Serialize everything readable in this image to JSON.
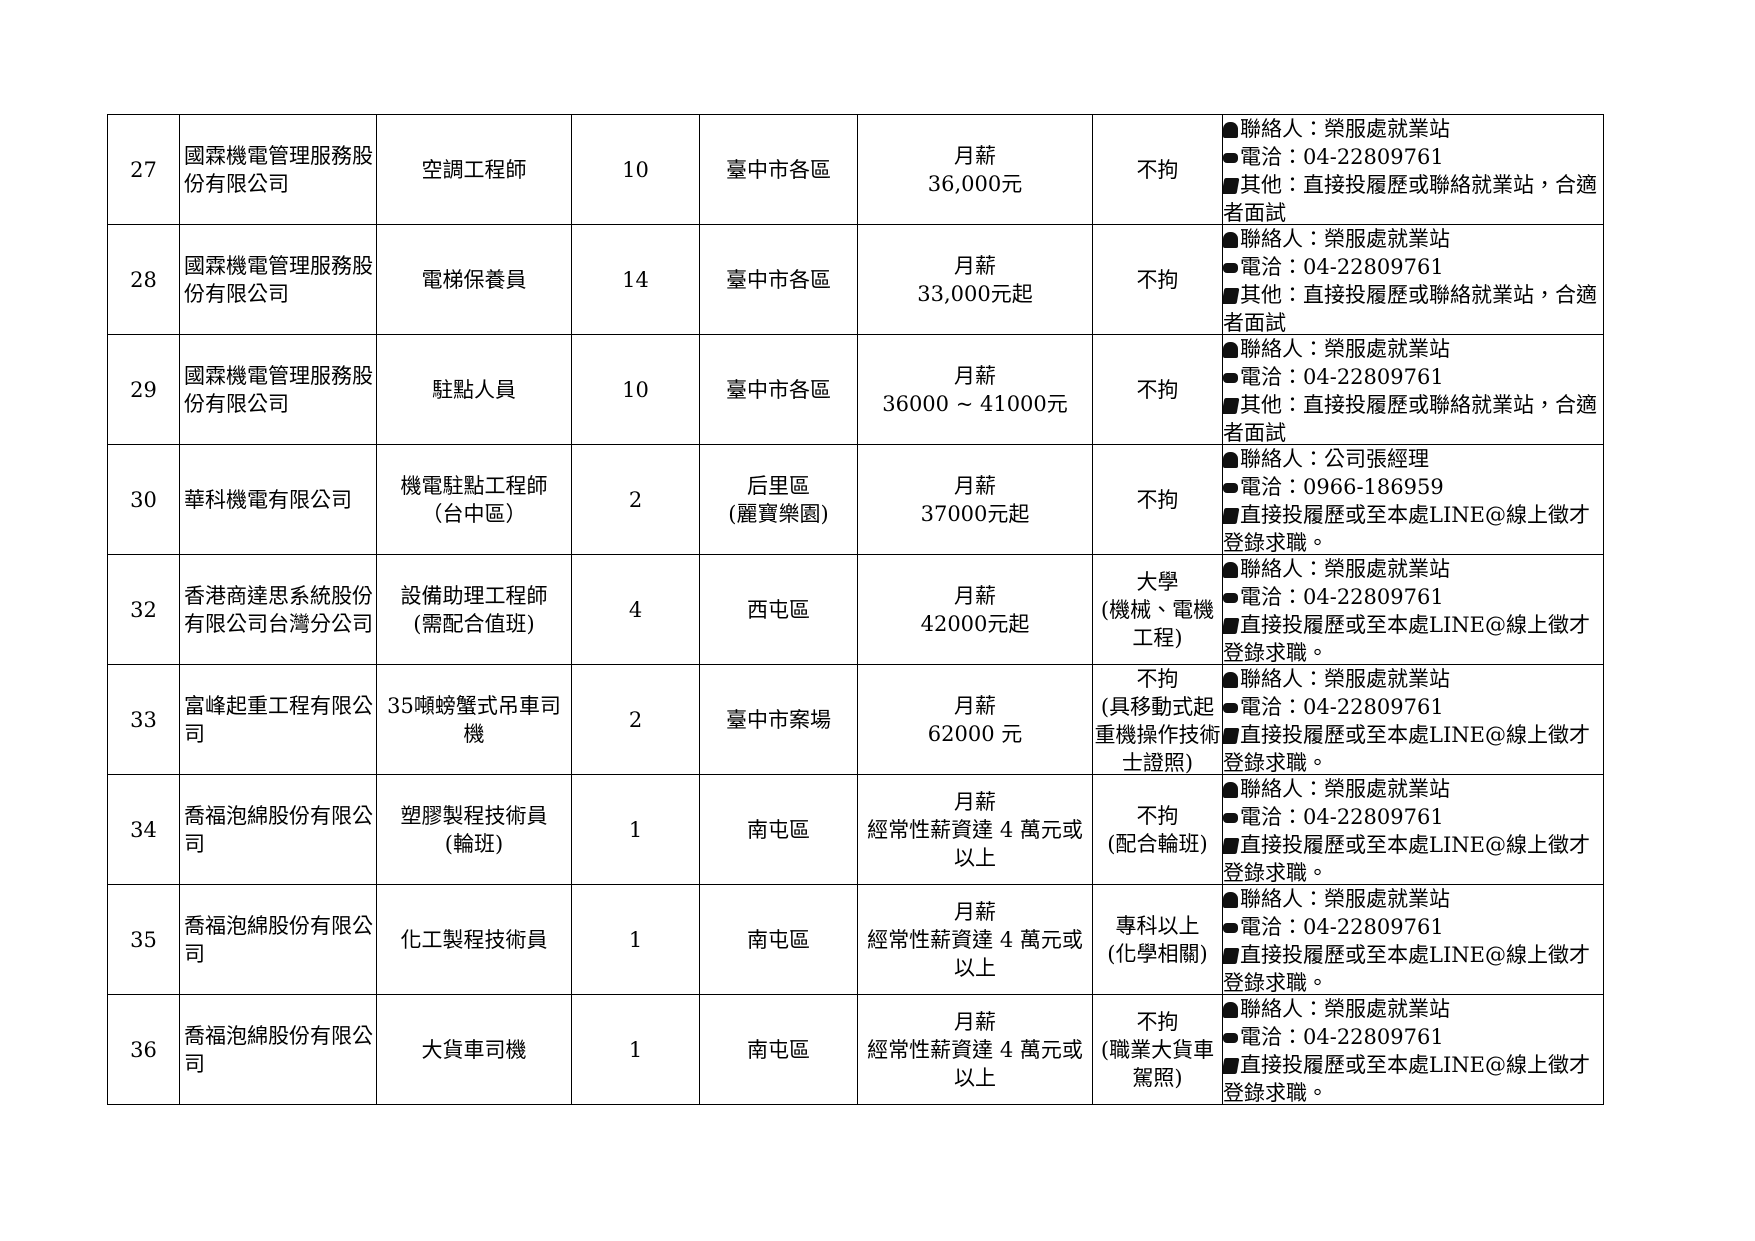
{
  "table": {
    "rows": [
      [
        "27",
        "國霖機電管理服務股份有限公司",
        "空調工程師",
        "10",
        "臺中市各區",
        "月薪\n36,000元",
        "不拘",
        [
          "聯絡人：榮服處就業站",
          "電洽：04-22809761",
          "其他：直接投履歷或聯絡就業站，合適者面試"
        ]
      ],
      [
        "28",
        "國霖機電管理服務股份有限公司",
        "電梯保養員",
        "14",
        "臺中市各區",
        "月薪\n33,000元起",
        "不拘",
        [
          "聯絡人：榮服處就業站",
          "電洽：04-22809761",
          "其他：直接投履歷或聯絡就業站，合適者面試"
        ]
      ],
      [
        "29",
        "國霖機電管理服務股份有限公司",
        "駐點人員",
        "10",
        "臺中市各區",
        "月薪\n36000 ~ 41000元",
        "不拘",
        [
          "聯絡人：榮服處就業站",
          "電洽：04-22809761",
          "其他：直接投履歷或聯絡就業站，合適者面試"
        ]
      ],
      [
        "30",
        "華科機電有限公司",
        "機電駐點工程師\n（台中區）",
        "2",
        "后里區\n(麗寶樂園)",
        "月薪\n37000元起",
        "不拘",
        [
          "聯絡人：公司張經理",
          "電洽：0966-186959",
          "直接投履歷或至本處LINE@線上徵才登錄求職。"
        ]
      ],
      [
        "32",
        "香港商達思系統股份有限公司台灣分公司",
        "設備助理工程師\n(需配合值班)",
        "4",
        "西屯區",
        "月薪\n42000元起",
        "大學\n(機械、電機工程)",
        [
          "聯絡人：榮服處就業站",
          "電洽：04-22809761",
          "直接投履歷或至本處LINE@線上徵才登錄求職。"
        ]
      ],
      [
        "33",
        "富峰起重工程有限公司",
        "35噸螃蟹式吊車司機",
        "2",
        "臺中市案場",
        "月薪\n62000 元",
        "不拘\n(具移動式起重機操作技術士證照)",
        [
          "聯絡人：榮服處就業站",
          "電洽：04-22809761",
          "直接投履歷或至本處LINE@線上徵才登錄求職。"
        ]
      ],
      [
        "34",
        "喬福泡綿股份有限公司",
        "塑膠製程技術員\n(輪班)",
        "1",
        "南屯區",
        "月薪\n經常性薪資達 4 萬元或以上",
        "不拘\n(配合輪班)",
        [
          "聯絡人：榮服處就業站",
          "電洽：04-22809761",
          "直接投履歷或至本處LINE@線上徵才登錄求職。"
        ]
      ],
      [
        "35",
        "喬福泡綿股份有限公司",
        "化工製程技術員",
        "1",
        "南屯區",
        "月薪\n經常性薪資達 4 萬元或以上",
        "專科以上\n(化學相關)",
        [
          "聯絡人：榮服處就業站",
          "電洽：04-22809761",
          "直接投履歷或至本處LINE@線上徵才登錄求職。"
        ]
      ],
      [
        "36",
        "喬福泡綿股份有限公司",
        "大貨車司機",
        "1",
        "南屯區",
        "月薪\n經常性薪資達 4 萬元或以上",
        "不拘\n(職業大貨車駕照)",
        [
          "聯絡人：榮服處就業站",
          "電洽：04-22809761",
          "直接投履歷或至本處LINE@線上徵才登錄求職。"
        ]
      ]
    ]
  }
}
